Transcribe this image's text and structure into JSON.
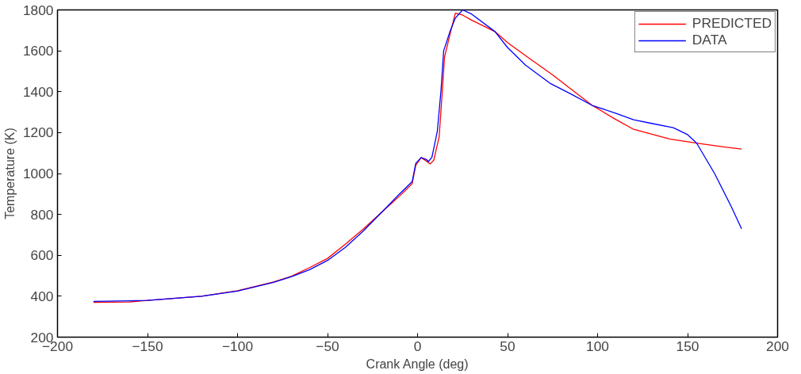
{
  "chart_data": {
    "type": "line",
    "xlabel": "Crank Angle (deg)",
    "ylabel": "Temperature (K)",
    "xlim": [
      -200,
      200
    ],
    "xticks": [
      -200,
      -150,
      -100,
      -50,
      0,
      50,
      100,
      150,
      200
    ],
    "ylim": [
      200,
      1800
    ],
    "yticks": [
      200,
      400,
      600,
      800,
      1000,
      1200,
      1400,
      1600,
      1800
    ],
    "grid": false,
    "legend": "top right",
    "marker": "none",
    "line_style": "solid",
    "series": [
      {
        "name": "PREDICTED",
        "color": "#ff0000",
        "x": [
          -180,
          -160,
          -150,
          -120,
          -100,
          -80,
          -70,
          -60,
          -50,
          -40,
          -30,
          -20,
          -10,
          -3,
          -1,
          2,
          5,
          7,
          9,
          12,
          13.5,
          15,
          18,
          21,
          25,
          30,
          43,
          50,
          60,
          75,
          97,
          110,
          120,
          140,
          155,
          170,
          180
        ],
        "values": [
          370,
          372,
          380,
          400,
          427,
          470,
          498,
          540,
          585,
          655,
          730,
          810,
          890,
          950,
          1040,
          1078,
          1060,
          1047,
          1065,
          1180,
          1370,
          1570,
          1680,
          1784,
          1775,
          1750,
          1694,
          1640,
          1576,
          1482,
          1333,
          1265,
          1216,
          1169,
          1149,
          1130,
          1120
        ]
      },
      {
        "name": "DATA",
        "color": "#0000ff",
        "x": [
          -180,
          -160,
          -150,
          -120,
          -100,
          -80,
          -70,
          -60,
          -50,
          -40,
          -30,
          -20,
          -10,
          -3,
          -1,
          2,
          5,
          6,
          8,
          11,
          13,
          14.5,
          18,
          21,
          25,
          30,
          43,
          50,
          60,
          74,
          85,
          97,
          110,
          120,
          130,
          142,
          150,
          155,
          165,
          174,
          180
        ],
        "values": [
          375,
          378,
          380,
          400,
          425,
          468,
          496,
          530,
          575,
          640,
          720,
          810,
          900,
          960,
          1050,
          1078,
          1068,
          1058,
          1080,
          1208,
          1404,
          1600,
          1694,
          1760,
          1800,
          1780,
          1694,
          1616,
          1530,
          1439,
          1390,
          1333,
          1295,
          1263,
          1245,
          1224,
          1190,
          1149,
          1000,
          843,
          730
        ]
      }
    ]
  }
}
